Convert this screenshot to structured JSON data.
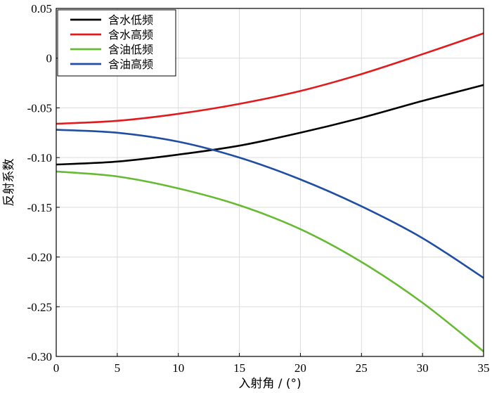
{
  "chart_data": {
    "type": "line",
    "title": "",
    "xlabel": "入射角 / (°)",
    "ylabel": "反射系数",
    "xlim": [
      0,
      35
    ],
    "ylim": [
      -0.3,
      0.05
    ],
    "xticks": [
      0,
      5,
      10,
      15,
      20,
      25,
      30,
      35
    ],
    "yticks": [
      0.05,
      0,
      -0.05,
      -0.1,
      -0.15,
      -0.2,
      -0.25,
      -0.3
    ],
    "xtick_labels": [
      "0",
      "5",
      "10",
      "15",
      "20",
      "25",
      "30",
      "35"
    ],
    "ytick_labels": [
      "0.05",
      "0",
      "-0.05",
      "-0.10",
      "-0.15",
      "-0.20",
      "-0.25",
      "-0.30"
    ],
    "grid": true,
    "legend": "top-left",
    "x": [
      0,
      5,
      10,
      15,
      20,
      25,
      30,
      35
    ],
    "series": [
      {
        "name": "含水低频",
        "color": "#000000",
        "values": [
          -0.107,
          -0.104,
          -0.097,
          -0.088,
          -0.075,
          -0.06,
          -0.043,
          -0.027
        ]
      },
      {
        "name": "含水高频",
        "color": "#e31a1c",
        "values": [
          -0.066,
          -0.063,
          -0.056,
          -0.046,
          -0.033,
          -0.016,
          0.004,
          0.025
        ]
      },
      {
        "name": "含油低频",
        "color": "#66bb33",
        "values": [
          -0.114,
          -0.119,
          -0.131,
          -0.148,
          -0.172,
          -0.205,
          -0.246,
          -0.295
        ]
      },
      {
        "name": "含油高频",
        "color": "#1f4ea3",
        "values": [
          -0.072,
          -0.075,
          -0.084,
          -0.1,
          -0.122,
          -0.149,
          -0.181,
          -0.221
        ]
      }
    ]
  }
}
